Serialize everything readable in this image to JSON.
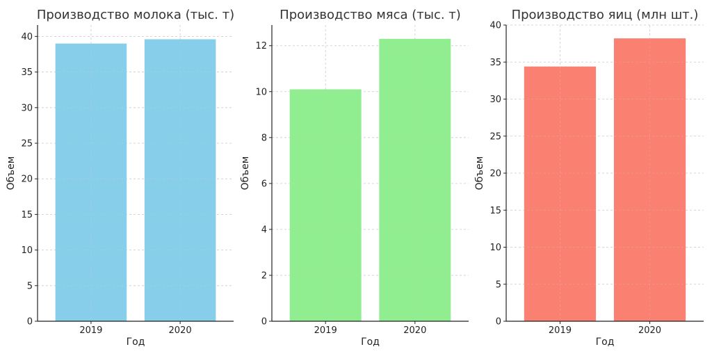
{
  "chart_data": [
    {
      "type": "bar",
      "title": "Производство молока (тыс. т)",
      "xlabel": "Год",
      "ylabel": "Объем",
      "categories": [
        "2019",
        "2020"
      ],
      "values": [
        39.0,
        39.6
      ],
      "ylim": [
        0,
        41.6
      ],
      "yticks": [
        0,
        5,
        10,
        15,
        20,
        25,
        30,
        35,
        40
      ],
      "color": "#87CEEB",
      "grid": true
    },
    {
      "type": "bar",
      "title": "Производство мяса (тыс. т)",
      "xlabel": "Год",
      "ylabel": "Объем",
      "categories": [
        "2019",
        "2020"
      ],
      "values": [
        10.1,
        12.3
      ],
      "ylim": [
        0,
        12.9
      ],
      "yticks": [
        0,
        2,
        4,
        6,
        8,
        10,
        12
      ],
      "color": "#90EE90",
      "grid": true
    },
    {
      "type": "bar",
      "title": "Производство яиц (млн шт.)",
      "xlabel": "Год",
      "ylabel": "Объем",
      "categories": [
        "2019",
        "2020"
      ],
      "values": [
        34.4,
        38.2
      ],
      "ylim": [
        0,
        40.0
      ],
      "yticks": [
        0,
        5,
        10,
        15,
        20,
        25,
        30,
        35,
        40
      ],
      "color": "#FA8072",
      "grid": true
    }
  ]
}
